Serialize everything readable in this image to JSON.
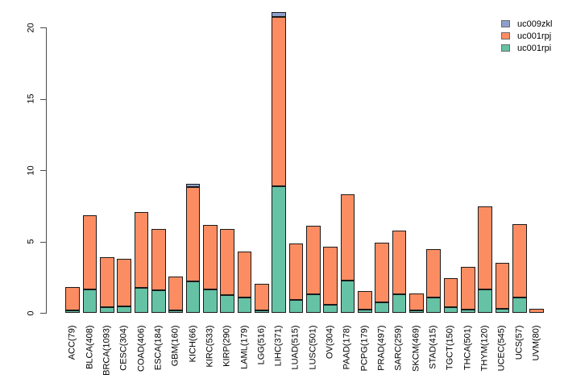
{
  "chart_data": {
    "type": "bar",
    "stacked": true,
    "title": "",
    "xlabel": "",
    "ylabel": "",
    "grid": false,
    "legend_position": "top-right",
    "ylim": [
      0,
      21.2
    ],
    "yticks": [
      0,
      5,
      10,
      15,
      20
    ],
    "categories": [
      "ACC(79)",
      "BLCA(408)",
      "BRCA(1093)",
      "CESC(304)",
      "COAD(406)",
      "ESCA(184)",
      "GBM(160)",
      "KICH(66)",
      "KIRC(533)",
      "KIRP(290)",
      "LAML(179)",
      "LGG(516)",
      "LIHC(371)",
      "LUAD(515)",
      "LUSC(501)",
      "OV(304)",
      "PAAD(178)",
      "PCPG(179)",
      "PRAD(497)",
      "SARC(259)",
      "SKCM(469)",
      "STAD(415)",
      "TGCT(150)",
      "THCA(501)",
      "THYM(120)",
      "UCEC(545)",
      "UCS(57)",
      "UVM(80)"
    ],
    "series": [
      {
        "name": "uc009zkl",
        "color": "#8DA0CB",
        "stack_order": 3,
        "values": [
          0,
          0,
          0,
          0,
          0,
          0,
          0,
          0.22,
          0,
          0,
          0,
          0,
          0.33,
          0,
          0,
          0,
          0,
          0,
          0,
          0,
          0,
          0,
          0,
          0,
          0,
          0,
          0,
          0
        ]
      },
      {
        "name": "uc001rpj",
        "color": "#FC8D62",
        "stack_order": 2,
        "values": [
          1.62,
          5.19,
          3.49,
          3.37,
          5.3,
          4.27,
          2.36,
          6.6,
          4.56,
          4.6,
          3.2,
          1.88,
          11.9,
          3.94,
          4.79,
          4.06,
          6.05,
          1.32,
          4.2,
          4.49,
          1.21,
          3.35,
          2.05,
          3.0,
          5.81,
          3.23,
          5.12,
          0.27
        ]
      },
      {
        "name": "uc001rpi",
        "color": "#66C2A5",
        "stack_order": 1,
        "values": [
          0.18,
          1.66,
          0.4,
          0.43,
          1.74,
          1.58,
          0.17,
          2.2,
          1.62,
          1.26,
          1.08,
          0.17,
          8.85,
          0.91,
          1.3,
          0.58,
          2.25,
          0.21,
          0.72,
          1.3,
          0.15,
          1.1,
          0.4,
          0.21,
          1.66,
          0.3,
          1.1,
          0
        ]
      }
    ]
  },
  "style": {
    "bar_border_color": "#1a1a1a",
    "axis_color": "#4d4d4d",
    "background": "#ffffff"
  }
}
